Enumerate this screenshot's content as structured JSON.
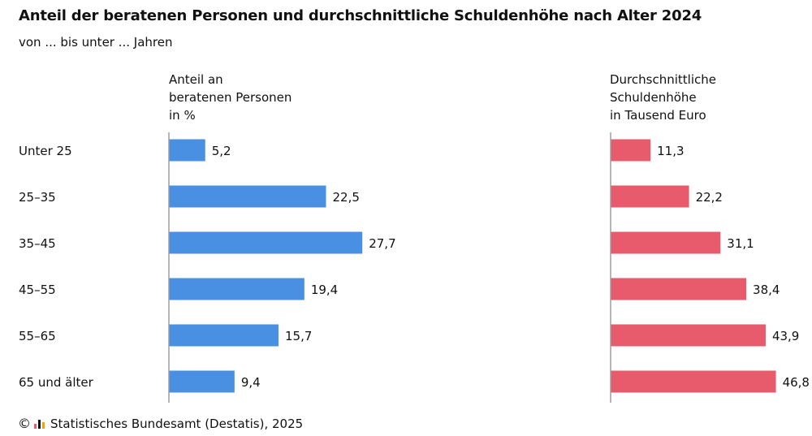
{
  "title": "Anteil der beratenen Personen und durchschnittliche Schuldenhöhe nach Alter 2024",
  "subtitle": "von ... bis unter ... Jahren",
  "source": "Statistisches Bundesamt (Destatis), 2025",
  "copyright_symbol": "©",
  "colors": {
    "left_series": "#4a90e2",
    "right_series": "#e85b6c",
    "axis": "#9e9e9e"
  },
  "chart_data": [
    {
      "type": "bar",
      "orientation": "horizontal",
      "header_lines": [
        "Anteil an",
        "beratenen Personen",
        "in %"
      ],
      "categories": [
        "Unter 25",
        "25–35",
        "35–45",
        "45–55",
        "55–65",
        "65 und älter"
      ],
      "values": [
        5.2,
        22.5,
        27.7,
        19.4,
        15.7,
        9.4
      ],
      "value_labels": [
        "5,2",
        "22,5",
        "27,7",
        "19,4",
        "15,7",
        "9,4"
      ],
      "xlim": [
        0,
        30
      ]
    },
    {
      "type": "bar",
      "orientation": "horizontal",
      "header_lines": [
        "Durchschnittliche",
        "Schuldenhöhe",
        "in Tausend Euro"
      ],
      "categories": [
        "Unter 25",
        "25–35",
        "35–45",
        "45–55",
        "55–65",
        "65 und älter"
      ],
      "values": [
        11.3,
        22.2,
        31.1,
        38.4,
        43.9,
        46.8
      ],
      "value_labels": [
        "11,3",
        "22,2",
        "31,1",
        "38,4",
        "43,9",
        "46,8"
      ],
      "xlim": [
        0,
        50
      ]
    }
  ]
}
